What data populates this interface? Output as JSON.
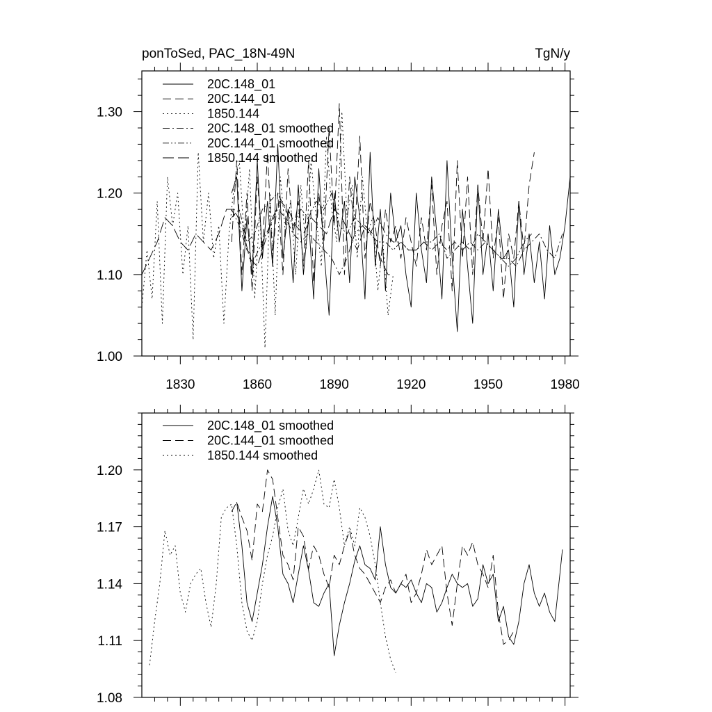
{
  "figure": {
    "left_title": "ponToSed, PAC_18N-49N",
    "right_title": "TgN/y"
  },
  "chart_data": [
    {
      "type": "line",
      "title": "ponToSed, PAC_18N-49N",
      "units": "TgN/y",
      "xlabel": "",
      "ylabel": "",
      "xlim": [
        1815,
        1982
      ],
      "ylim": [
        1.0,
        1.35
      ],
      "x_ticks": [
        1830,
        1860,
        1890,
        1920,
        1950,
        1980
      ],
      "x_tick_labels": [
        "1830",
        "1860",
        "1890",
        "1920",
        "1950",
        "1980"
      ],
      "y_ticks": [
        1.0,
        1.1,
        1.2,
        1.3
      ],
      "y_tick_labels": [
        "1.00",
        "1.10",
        "1.20",
        "1.30"
      ],
      "grid": false,
      "legend_position": "top-left",
      "series": [
        {
          "name": "20C.148_01",
          "style": "solid",
          "x": [
            1850,
            1852,
            1854,
            1856,
            1858,
            1860,
            1862,
            1864,
            1866,
            1868,
            1870,
            1872,
            1874,
            1876,
            1878,
            1880,
            1882,
            1884,
            1886,
            1888,
            1890,
            1892,
            1894,
            1896,
            1898,
            1900,
            1902,
            1904,
            1906,
            1908,
            1910,
            1912,
            1914,
            1916,
            1918,
            1920,
            1922,
            1924,
            1926,
            1928,
            1930,
            1932,
            1934,
            1936,
            1938,
            1940,
            1942,
            1944,
            1946,
            1948,
            1950,
            1952,
            1954,
            1956,
            1958,
            1960,
            1962,
            1964,
            1966,
            1968,
            1970,
            1972,
            1974,
            1976,
            1978,
            1980,
            1982
          ],
          "y": [
            1.2,
            1.22,
            1.08,
            1.17,
            1.1,
            1.24,
            1.12,
            1.19,
            1.11,
            1.26,
            1.12,
            1.18,
            1.09,
            1.21,
            1.1,
            1.17,
            1.07,
            1.23,
            1.13,
            1.05,
            1.2,
            1.14,
            1.19,
            1.09,
            1.22,
            1.17,
            1.07,
            1.25,
            1.11,
            1.18,
            1.08,
            1.2,
            1.14,
            1.16,
            1.1,
            1.06,
            1.2,
            1.13,
            1.09,
            1.22,
            1.15,
            1.07,
            1.24,
            1.12,
            1.03,
            1.18,
            1.11,
            1.04,
            1.21,
            1.1,
            1.15,
            1.08,
            1.18,
            1.12,
            1.13,
            1.06,
            1.19,
            1.1,
            1.15,
            1.09,
            1.14,
            1.07,
            1.16,
            1.1,
            1.12,
            1.16,
            1.22
          ]
        },
        {
          "name": "20C.144_01",
          "style": "dashed",
          "x": [
            1850,
            1852,
            1854,
            1856,
            1858,
            1860,
            1862,
            1864,
            1866,
            1868,
            1870,
            1872,
            1874,
            1876,
            1878,
            1880,
            1882,
            1884,
            1886,
            1888,
            1890,
            1892,
            1894,
            1896,
            1898,
            1900,
            1902,
            1904,
            1906,
            1908,
            1910,
            1912,
            1914,
            1916,
            1918,
            1920,
            1922,
            1924,
            1926,
            1928,
            1930,
            1932,
            1934,
            1936,
            1938,
            1940,
            1942,
            1944,
            1946,
            1948,
            1950,
            1952,
            1954,
            1956,
            1958,
            1960,
            1962,
            1964,
            1966,
            1968
          ],
          "y": [
            1.14,
            1.24,
            1.1,
            1.2,
            1.08,
            1.22,
            1.13,
            1.25,
            1.12,
            1.2,
            1.1,
            1.23,
            1.15,
            1.19,
            1.11,
            1.24,
            1.09,
            1.2,
            1.14,
            1.28,
            1.16,
            1.31,
            1.1,
            1.22,
            1.15,
            1.27,
            1.12,
            1.19,
            1.16,
            1.11,
            1.18,
            1.14,
            1.16,
            1.12,
            1.17,
            1.14,
            1.11,
            1.17,
            1.13,
            1.21,
            1.1,
            1.16,
            1.19,
            1.08,
            1.24,
            1.12,
            1.22,
            1.1,
            1.21,
            1.14,
            1.23,
            1.12,
            1.17,
            1.07,
            1.15,
            1.12,
            1.19,
            1.13,
            1.21,
            1.25
          ]
        },
        {
          "name": "1850.144",
          "style": "dotted",
          "x": [
            1815,
            1817,
            1819,
            1821,
            1823,
            1825,
            1827,
            1829,
            1831,
            1833,
            1835,
            1837,
            1839,
            1841,
            1843,
            1845,
            1847,
            1849,
            1851,
            1853,
            1855,
            1857,
            1859,
            1861,
            1863,
            1865,
            1867,
            1869,
            1871,
            1873,
            1875,
            1877,
            1879,
            1881,
            1883,
            1885,
            1887,
            1889,
            1891,
            1893,
            1895,
            1897,
            1899,
            1901,
            1903,
            1905,
            1907,
            1909,
            1911,
            1913
          ],
          "y": [
            1.06,
            1.13,
            1.07,
            1.19,
            1.04,
            1.22,
            1.16,
            1.2,
            1.1,
            1.16,
            1.02,
            1.25,
            1.14,
            1.2,
            1.12,
            1.16,
            1.04,
            1.15,
            1.21,
            1.24,
            1.14,
            1.23,
            1.07,
            1.18,
            1.01,
            1.2,
            1.05,
            1.22,
            1.15,
            1.19,
            1.1,
            1.21,
            1.13,
            1.24,
            1.17,
            1.11,
            1.27,
            1.18,
            1.14,
            1.3,
            1.17,
            1.21,
            1.12,
            1.22,
            1.15,
            1.17,
            1.08,
            1.14,
            1.05,
            1.1
          ]
        },
        {
          "name": "20C.148_01 smoothed",
          "style": "dashdot",
          "x": [
            1850,
            1853,
            1856,
            1859,
            1862,
            1865,
            1868,
            1871,
            1874,
            1877,
            1880,
            1883,
            1886,
            1889,
            1892,
            1895,
            1898,
            1901,
            1904,
            1907,
            1910,
            1913,
            1916,
            1919,
            1922,
            1925,
            1928,
            1931,
            1934,
            1937,
            1940,
            1943,
            1946,
            1949,
            1952,
            1955,
            1958,
            1961,
            1964,
            1967,
            1970,
            1973,
            1976,
            1979
          ],
          "y": [
            1.18,
            1.16,
            1.13,
            1.12,
            1.14,
            1.16,
            1.18,
            1.17,
            1.15,
            1.14,
            1.15,
            1.14,
            1.13,
            1.12,
            1.1,
            1.12,
            1.15,
            1.16,
            1.15,
            1.17,
            1.15,
            1.14,
            1.14,
            1.13,
            1.13,
            1.14,
            1.13,
            1.14,
            1.13,
            1.14,
            1.13,
            1.14,
            1.13,
            1.14,
            1.13,
            1.12,
            1.12,
            1.11,
            1.13,
            1.14,
            1.15,
            1.13,
            1.12,
            1.15
          ]
        },
        {
          "name": "20C.144_01 smoothed",
          "style": "dashdotdot",
          "x": [
            1850,
            1853,
            1856,
            1859,
            1862,
            1865,
            1868,
            1871,
            1874,
            1877,
            1880,
            1883,
            1886,
            1889,
            1892,
            1895,
            1898,
            1901,
            1904,
            1907,
            1910,
            1913,
            1916,
            1919,
            1922,
            1925,
            1928,
            1931,
            1934,
            1937,
            1940,
            1943,
            1946,
            1949,
            1952,
            1955,
            1958,
            1961,
            1964,
            1967
          ],
          "y": [
            1.17,
            1.18,
            1.14,
            1.15,
            1.18,
            1.19,
            1.2,
            1.18,
            1.16,
            1.18,
            1.17,
            1.19,
            1.18,
            1.2,
            1.16,
            1.15,
            1.17,
            1.16,
            1.15,
            1.14,
            1.14,
            1.13,
            1.14,
            1.13,
            1.13,
            1.14,
            1.14,
            1.15,
            1.12,
            1.13,
            1.14,
            1.13,
            1.15,
            1.14,
            1.13,
            1.12,
            1.11,
            1.12,
            1.14,
            1.15
          ]
        },
        {
          "name": "1850.144 smoothed",
          "style": "longdash",
          "x": [
            1815,
            1818,
            1821,
            1824,
            1827,
            1830,
            1833,
            1836,
            1839,
            1842,
            1845,
            1848,
            1851,
            1854,
            1857,
            1860,
            1863,
            1866,
            1869,
            1872,
            1875,
            1878,
            1881,
            1884,
            1887,
            1890,
            1893,
            1896,
            1899,
            1902,
            1905,
            1908,
            1911,
            1913
          ],
          "y": [
            1.1,
            1.12,
            1.14,
            1.17,
            1.16,
            1.14,
            1.13,
            1.15,
            1.14,
            1.13,
            1.15,
            1.18,
            1.18,
            1.16,
            1.12,
            1.11,
            1.14,
            1.17,
            1.19,
            1.18,
            1.16,
            1.15,
            1.17,
            1.16,
            1.15,
            1.18,
            1.17,
            1.15,
            1.13,
            1.16,
            1.15,
            1.12,
            1.1,
            1.1
          ]
        }
      ]
    },
    {
      "type": "line",
      "title": "",
      "xlabel": "",
      "ylabel": "",
      "xlim": [
        1815,
        1982
      ],
      "ylim": [
        1.08,
        1.23
      ],
      "x_ticks": [
        1830,
        1860,
        1890,
        1920,
        1950,
        1980
      ],
      "y_ticks": [
        1.08,
        1.11,
        1.14,
        1.17,
        1.2
      ],
      "y_tick_labels": [
        "1.08",
        "1.11",
        "1.14",
        "1.17",
        "1.20"
      ],
      "grid": false,
      "legend_position": "top-left",
      "series": [
        {
          "name": "20C.148_01 smoothed",
          "style": "solid",
          "x": [
            1852,
            1854,
            1856,
            1858,
            1860,
            1862,
            1864,
            1866,
            1868,
            1870,
            1872,
            1874,
            1876,
            1878,
            1880,
            1882,
            1884,
            1886,
            1888,
            1890,
            1892,
            1894,
            1896,
            1898,
            1900,
            1902,
            1904,
            1906,
            1908,
            1910,
            1912,
            1914,
            1916,
            1918,
            1920,
            1922,
            1924,
            1926,
            1928,
            1930,
            1932,
            1934,
            1936,
            1938,
            1940,
            1942,
            1944,
            1946,
            1948,
            1950,
            1952,
            1954,
            1956,
            1958,
            1960,
            1962,
            1964,
            1966,
            1968,
            1970,
            1972,
            1974,
            1976,
            1978,
            1979
          ],
          "y": [
            1.183,
            1.16,
            1.13,
            1.12,
            1.135,
            1.15,
            1.17,
            1.186,
            1.17,
            1.145,
            1.14,
            1.13,
            1.145,
            1.16,
            1.147,
            1.13,
            1.128,
            1.135,
            1.14,
            1.102,
            1.118,
            1.13,
            1.14,
            1.152,
            1.16,
            1.15,
            1.148,
            1.142,
            1.17,
            1.15,
            1.138,
            1.135,
            1.14,
            1.138,
            1.142,
            1.135,
            1.13,
            1.14,
            1.138,
            1.125,
            1.13,
            1.138,
            1.145,
            1.14,
            1.138,
            1.14,
            1.128,
            1.132,
            1.15,
            1.14,
            1.145,
            1.12,
            1.128,
            1.112,
            1.108,
            1.12,
            1.14,
            1.15,
            1.135,
            1.128,
            1.135,
            1.125,
            1.12,
            1.145,
            1.158
          ]
        },
        {
          "name": "20C.144_01 smoothed",
          "style": "dashed",
          "x": [
            1850,
            1852,
            1854,
            1856,
            1858,
            1860,
            1862,
            1864,
            1866,
            1868,
            1870,
            1872,
            1874,
            1876,
            1878,
            1880,
            1882,
            1884,
            1886,
            1888,
            1890,
            1892,
            1894,
            1896,
            1898,
            1900,
            1902,
            1904,
            1906,
            1908,
            1910,
            1912,
            1914,
            1916,
            1918,
            1920,
            1922,
            1924,
            1926,
            1928,
            1930,
            1932,
            1934,
            1936,
            1938,
            1940,
            1942,
            1944,
            1946,
            1948,
            1950,
            1952,
            1954,
            1956,
            1958,
            1960
          ],
          "y": [
            1.178,
            1.183,
            1.175,
            1.168,
            1.152,
            1.182,
            1.178,
            1.2,
            1.195,
            1.175,
            1.155,
            1.15,
            1.142,
            1.17,
            1.165,
            1.148,
            1.16,
            1.155,
            1.145,
            1.138,
            1.155,
            1.15,
            1.16,
            1.168,
            1.155,
            1.148,
            1.145,
            1.14,
            1.135,
            1.13,
            1.138,
            1.142,
            1.135,
            1.14,
            1.145,
            1.13,
            1.135,
            1.145,
            1.158,
            1.15,
            1.155,
            1.16,
            1.135,
            1.118,
            1.14,
            1.16,
            1.155,
            1.162,
            1.15,
            1.145,
            1.138,
            1.155,
            1.125,
            1.108,
            1.11,
            1.115
          ]
        },
        {
          "name": "1850.144 smoothed",
          "style": "dotted",
          "x": [
            1818,
            1820,
            1822,
            1824,
            1826,
            1828,
            1830,
            1832,
            1834,
            1836,
            1838,
            1840,
            1842,
            1844,
            1846,
            1848,
            1850,
            1852,
            1854,
            1856,
            1858,
            1860,
            1862,
            1864,
            1866,
            1868,
            1870,
            1872,
            1874,
            1876,
            1878,
            1880,
            1882,
            1884,
            1886,
            1888,
            1890,
            1892,
            1894,
            1896,
            1898,
            1900,
            1902,
            1904,
            1906,
            1908,
            1910,
            1912,
            1914
          ],
          "y": [
            1.097,
            1.12,
            1.14,
            1.168,
            1.155,
            1.16,
            1.135,
            1.125,
            1.14,
            1.145,
            1.148,
            1.13,
            1.117,
            1.14,
            1.175,
            1.18,
            1.182,
            1.16,
            1.13,
            1.115,
            1.11,
            1.12,
            1.14,
            1.155,
            1.165,
            1.18,
            1.19,
            1.168,
            1.16,
            1.175,
            1.19,
            1.182,
            1.19,
            1.2,
            1.182,
            1.18,
            1.195,
            1.18,
            1.16,
            1.17,
            1.16,
            1.18,
            1.175,
            1.165,
            1.15,
            1.13,
            1.112,
            1.1,
            1.093
          ]
        }
      ]
    }
  ]
}
